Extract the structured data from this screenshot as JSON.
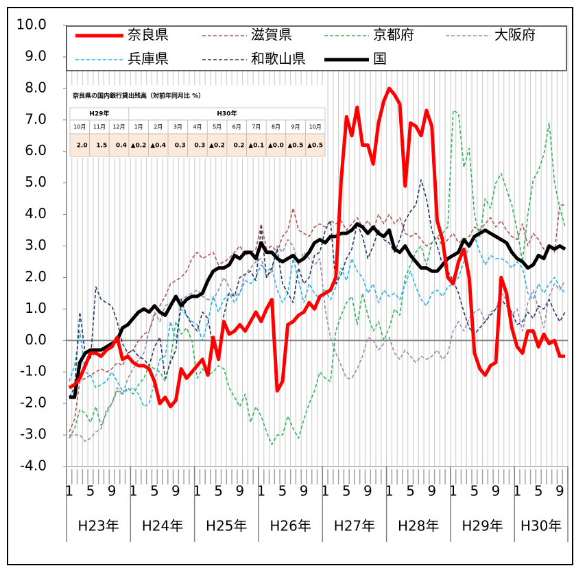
{
  "chart_data": {
    "type": "line",
    "categories": [
      "1",
      null,
      null,
      null,
      "5",
      null,
      null,
      null,
      "9",
      null,
      null,
      null,
      "1",
      null,
      null,
      null,
      "5",
      null,
      null,
      null,
      "9",
      null,
      null,
      null,
      "1",
      null,
      null,
      null,
      "5",
      null,
      null,
      null,
      "9",
      null,
      null,
      null,
      "1",
      null,
      null,
      null,
      "5",
      null,
      null,
      null,
      "9",
      null,
      null,
      null,
      "1",
      null,
      null,
      null,
      "5",
      null,
      null,
      null,
      "9",
      null,
      null,
      null,
      "1",
      null,
      null,
      null,
      "5",
      null,
      null,
      null,
      "9",
      null,
      null,
      null,
      "1",
      null,
      null,
      null,
      "5",
      null,
      null,
      null,
      "9",
      null,
      null,
      null,
      "1",
      null,
      null,
      null,
      "5",
      null,
      null,
      null,
      "9",
      null
    ],
    "year_labels": [
      "H23年",
      "H24年",
      "H25年",
      "H26年",
      "H27年",
      "H28年",
      "H29年",
      "H30年"
    ],
    "ylim": [
      -4,
      10
    ],
    "yticks": [
      {
        "value": 10,
        "label": "10.0"
      },
      {
        "value": 9,
        "label": "9.0"
      },
      {
        "value": 8,
        "label": "8.0"
      },
      {
        "value": 7,
        "label": "7.0"
      },
      {
        "value": 6,
        "label": "6.0"
      },
      {
        "value": 5,
        "label": "5.0"
      },
      {
        "value": 4,
        "label": "4.0"
      },
      {
        "value": 3,
        "label": "3.0"
      },
      {
        "value": 2,
        "label": "2.0"
      },
      {
        "value": 1,
        "label": "1.0"
      },
      {
        "value": 0,
        "label": "0.0"
      },
      {
        "value": -1,
        "label": "-1.0"
      },
      {
        "value": -2,
        "label": "-2.0"
      },
      {
        "value": -3,
        "label": "-3.0"
      },
      {
        "value": -4,
        "label": "-4.0"
      }
    ],
    "series": [
      {
        "name": "奈良県",
        "color": "#ff0000",
        "style": "solid",
        "values": [
          -1.5,
          -1.4,
          -1.2,
          -0.8,
          -0.4,
          -0.4,
          -0.5,
          -0.3,
          -0.2,
          0.1,
          -0.6,
          -0.5,
          -0.7,
          -0.8,
          -0.8,
          -0.9,
          -1.3,
          -2.0,
          -1.8,
          -2.1,
          -1.9,
          -0.9,
          -1.2,
          -1.0,
          -0.8,
          -0.6,
          -1.1,
          0.1,
          -0.6,
          0.6,
          0.2,
          0.3,
          0.5,
          0.3,
          0.6,
          0.9,
          0.6,
          1.0,
          1.3,
          -1.6,
          -1.3,
          0.5,
          0.6,
          0.8,
          0.9,
          1.2,
          1.0,
          1.4,
          1.5,
          1.6,
          2.0,
          5.1,
          7.1,
          6.5,
          7.4,
          6.2,
          6.2,
          5.6,
          6.9,
          7.6,
          8.0,
          7.8,
          7.5,
          4.9,
          6.9,
          6.8,
          6.5,
          7.3,
          6.8,
          3.8,
          3.2,
          2.0,
          1.8,
          2.5,
          2.9,
          2.0,
          -0.4,
          -0.9,
          -1.1,
          -0.8,
          -0.7,
          2.0,
          1.5,
          0.4,
          -0.2,
          -0.4,
          0.3,
          0.3,
          -0.2,
          0.2,
          -0.1,
          0.0,
          -0.5,
          -0.5
        ]
      },
      {
        "name": "滋賀県",
        "color": "#b5524f",
        "style": "dashed",
        "values": [
          -2.9,
          -2.5,
          -1.3,
          -1.2,
          -1.1,
          -1.0,
          -0.9,
          -1.0,
          -0.9,
          -0.7,
          -0.8,
          -0.4,
          -0.3,
          0.0,
          0.2,
          0.3,
          0.8,
          1.1,
          1.4,
          1.8,
          1.9,
          2.0,
          2.2,
          2.6,
          2.8,
          2.6,
          2.7,
          2.8,
          2.4,
          2.5,
          2.6,
          2.8,
          3.0,
          2.7,
          2.8,
          2.9,
          3.7,
          2.9,
          3.0,
          2.8,
          3.3,
          3.5,
          4.2,
          3.5,
          3.4,
          3.3,
          3.6,
          3.7,
          3.6,
          3.8,
          3.7,
          3.8,
          3.5,
          3.7,
          3.9,
          3.6,
          3.8,
          3.5,
          4.0,
          3.7,
          4.0,
          3.7,
          3.9,
          3.4,
          3.3,
          3.4,
          3.2,
          3.0,
          3.1,
          3.3,
          3.0,
          3.2,
          3.4,
          3.1,
          3.2,
          3.3,
          3.6,
          3.5,
          3.7,
          3.9,
          3.6,
          3.8,
          3.5,
          3.3,
          3.2,
          3.7,
          3.0,
          3.4,
          3.2,
          2.9,
          3.0,
          2.8,
          4.3,
          4.3
        ]
      },
      {
        "name": "京都府",
        "color": "#2fb457",
        "style": "dashed",
        "values": [
          -3.1,
          -2.8,
          -2.2,
          -2.3,
          -2.6,
          -2.1,
          -2.7,
          -2.3,
          -2.0,
          -1.6,
          -1.7,
          -1.5,
          -1.7,
          -1.4,
          -1.2,
          -0.8,
          -0.9,
          -1.0,
          -1.3,
          -0.6,
          0.6,
          0.2,
          0.4,
          0.0,
          -1.2,
          -0.9,
          -1.1,
          -1.0,
          -0.8,
          -0.9,
          -1.5,
          -1.8,
          -2.1,
          -1.7,
          -2.6,
          -2.1,
          -2.4,
          -2.9,
          -3.3,
          -3.0,
          -3.0,
          -2.4,
          -2.8,
          -3.1,
          -2.5,
          -2.0,
          -1.6,
          -1.0,
          -1.2,
          -1.3,
          0.3,
          0.8,
          1.2,
          1.4,
          0.5,
          1.5,
          0.8,
          0.3,
          0.6,
          0.0,
          0.4,
          1.0,
          0.8,
          2.0,
          2.4,
          2.8,
          3.0,
          2.4,
          3.1,
          3.3,
          3.4,
          3.6,
          7.3,
          7.2,
          5.5,
          6.1,
          4.0,
          3.3,
          4.5,
          4.2,
          5.0,
          5.3,
          4.8,
          4.3,
          3.5,
          2.5,
          4.0,
          5.1,
          5.4,
          5.9,
          6.9,
          5.0,
          4.2,
          3.6
        ]
      },
      {
        "name": "大阪府",
        "color": "#9a86b0",
        "style": "dashed",
        "values": [
          -3.0,
          -3.0,
          -3.0,
          -3.2,
          -3.1,
          -2.9,
          -2.8,
          -2.2,
          -2.0,
          -1.5,
          -1.7,
          -1.2,
          -0.9,
          -0.6,
          -0.4,
          0.3,
          0.9,
          0.6,
          1.1,
          1.2,
          1.3,
          1.3,
          1.4,
          1.5,
          1.6,
          1.4,
          1.3,
          1.3,
          1.6,
          2.0,
          1.7,
          1.4,
          1.5,
          2.1,
          2.3,
          2.5,
          2.6,
          2.0,
          2.2,
          3.0,
          2.8,
          3.2,
          3.0,
          2.4,
          2.8,
          2.6,
          2.4,
          2.6,
          1.0,
          0.1,
          -0.4,
          -0.8,
          -1.2,
          -1.2,
          -0.9,
          -0.5,
          0.1,
          0.0,
          -0.3,
          -0.1,
          0.1,
          -0.4,
          -0.6,
          -0.3,
          -0.5,
          -0.7,
          -0.5,
          -0.6,
          -0.5,
          -0.3,
          -0.6,
          -0.4,
          0.3,
          0.6,
          0.3,
          0.7,
          0.9,
          1.0,
          0.6,
          0.9,
          1.0,
          1.5,
          1.3,
          0.8,
          1.0,
          0.3,
          1.2,
          1.6,
          1.0,
          0.4,
          1.4,
          1.8,
          1.6,
          1.9
        ]
      },
      {
        "name": "兵庫県",
        "color": "#22b2ee",
        "style": "dashed",
        "values": [
          -1.3,
          -0.8,
          0.3,
          -1.0,
          -1.1,
          -1.5,
          -1.4,
          -1.3,
          -1.0,
          -1.3,
          -1.6,
          -1.6,
          -1.5,
          -1.7,
          -2.1,
          -2.0,
          -1.3,
          -0.6,
          -0.5,
          0.6,
          0.0,
          1.0,
          0.8,
          0.6,
          0.5,
          0.0,
          0.6,
          1.4,
          0.9,
          1.3,
          1.5,
          1.2,
          1.5,
          1.9,
          1.8,
          2.0,
          2.4,
          2.2,
          2.3,
          1.6,
          1.2,
          1.5,
          2.6,
          1.9,
          1.2,
          1.8,
          1.5,
          1.3,
          1.6,
          1.3,
          1.7,
          2.3,
          1.9,
          2.6,
          2.2,
          2.0,
          1.5,
          1.8,
          1.2,
          1.6,
          1.4,
          1.5,
          1.3,
          1.8,
          2.2,
          1.7,
          1.3,
          1.1,
          1.5,
          1.6,
          1.4,
          1.7,
          1.8,
          2.0,
          2.5,
          3.0,
          3.3,
          2.8,
          2.4,
          2.7,
          2.6,
          2.6,
          2.5,
          2.3,
          2.5,
          2.3,
          1.5,
          1.3,
          1.8,
          1.5,
          1.8,
          2.0,
          1.7,
          1.5
        ]
      },
      {
        "name": "和歌山県",
        "color": "#1f3864",
        "style": "dashed",
        "values": [
          -1.8,
          -1.5,
          0.9,
          -0.4,
          -0.6,
          1.7,
          1.3,
          1.2,
          1.1,
          0.6,
          -0.1,
          -0.4,
          -0.3,
          -0.5,
          -0.6,
          -0.8,
          -0.2,
          0.1,
          -1.2,
          -0.7,
          -0.3,
          1.3,
          0.8,
          0.5,
          0.3,
          0.9,
          0.7,
          -0.2,
          -0.4,
          0.8,
          1.5,
          1.4,
          2.0,
          2.1,
          2.2,
          1.9,
          3.6,
          2.0,
          2.3,
          2.9,
          1.8,
          1.5,
          1.2,
          2.3,
          1.8,
          2.0,
          2.7,
          2.8,
          3.5,
          3.8,
          1.8,
          2.1,
          2.6,
          2.9,
          3.7,
          3.3,
          2.6,
          3.0,
          3.5,
          3.2,
          3.1,
          2.8,
          3.2,
          3.8,
          4.1,
          4.3,
          5.1,
          4.5,
          3.5,
          3.0,
          2.4,
          2.2,
          1.9,
          1.5,
          0.9,
          0.4,
          0.2,
          0.4,
          0.6,
          0.8,
          1.0,
          1.3,
          1.1,
          0.9,
          0.5,
          0.6,
          0.9,
          0.7,
          1.1,
          1.0,
          1.3,
          0.9,
          0.6,
          0.9
        ]
      },
      {
        "name": "国",
        "color": "#000000",
        "style": "solid",
        "values": [
          -1.8,
          -1.8,
          -0.7,
          -0.4,
          -0.3,
          -0.3,
          -0.3,
          -0.2,
          -0.1,
          0.0,
          0.4,
          0.5,
          0.7,
          0.9,
          1.0,
          0.9,
          1.1,
          0.9,
          0.8,
          1.1,
          1.4,
          1.1,
          1.3,
          1.4,
          1.4,
          1.5,
          1.9,
          2.2,
          2.3,
          2.3,
          2.4,
          2.7,
          2.6,
          2.8,
          2.8,
          2.6,
          3.1,
          2.8,
          2.8,
          2.6,
          2.5,
          2.6,
          2.7,
          2.5,
          2.6,
          2.8,
          3.1,
          3.2,
          3.1,
          3.3,
          3.3,
          3.4,
          3.4,
          3.5,
          3.7,
          3.6,
          3.4,
          3.6,
          3.4,
          3.3,
          3.5,
          2.9,
          2.8,
          3.0,
          2.7,
          2.5,
          2.3,
          2.3,
          2.2,
          2.2,
          2.4,
          2.6,
          2.7,
          2.8,
          3.2,
          3.0,
          3.3,
          3.4,
          3.5,
          3.4,
          3.3,
          3.2,
          3.1,
          2.8,
          2.6,
          2.5,
          2.3,
          2.4,
          2.7,
          2.6,
          3.0,
          2.9,
          3.0,
          2.9
        ]
      }
    ],
    "inset_table": {
      "title": "奈良県の国内銀行貸出残高（対前年同月比 %）",
      "groups": [
        {
          "label": "H29年",
          "months": [
            "10月",
            "11月",
            "12月"
          ],
          "values": [
            "2.0",
            "1.5",
            "0.4"
          ]
        },
        {
          "label": "H30年",
          "months": [
            "1月",
            "2月",
            "3月",
            "4月",
            "5月",
            "6月",
            "7月",
            "8月",
            "9月",
            "10月"
          ],
          "values": [
            "▲0.2",
            "▲0.4",
            "0.3",
            "0.3",
            "▲0.2",
            "0.2",
            "▲0.1",
            "▲0.0",
            "▲0.5",
            "▲0.5"
          ]
        }
      ]
    }
  }
}
